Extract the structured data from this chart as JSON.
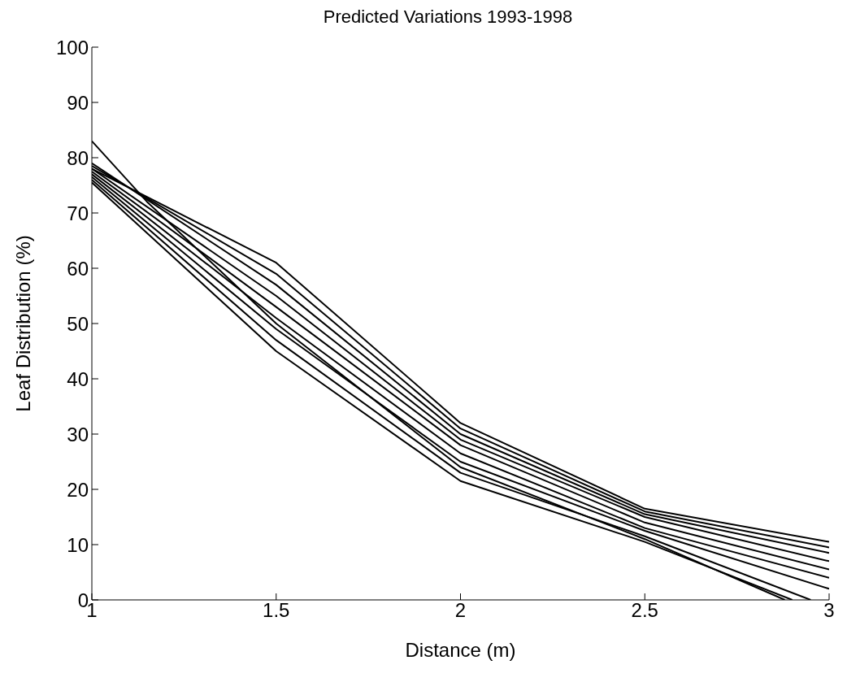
{
  "chart_data": {
    "type": "line",
    "title": "Predicted Variations 1993-1998",
    "xlabel": "Distance (m)",
    "ylabel": "Leaf Distribution (%)",
    "x": [
      1,
      1.5,
      2,
      2.5,
      3
    ],
    "series": [
      {
        "color": "#000000",
        "values": [
          78,
          61,
          32,
          16.5,
          10.5
        ]
      },
      {
        "color": "#000000",
        "values": [
          78.5,
          59,
          31,
          16,
          9.5
        ]
      },
      {
        "color": "#000000",
        "values": [
          79,
          57,
          30,
          15.5,
          8.5
        ]
      },
      {
        "color": "#000000",
        "values": [
          78,
          55,
          29,
          15,
          7
        ]
      },
      {
        "color": "#000000",
        "values": [
          77.5,
          53,
          28,
          14,
          5.5
        ]
      },
      {
        "color": "#000000",
        "values": [
          77,
          51,
          26.5,
          13,
          4
        ]
      },
      {
        "color": "#000000",
        "values": [
          76.5,
          49,
          25,
          12.5,
          2
        ]
      },
      {
        "color": "#000000",
        "x": [
          1,
          1.5,
          2,
          2.5,
          2.95
        ],
        "values": [
          76,
          47,
          23,
          11.5,
          0
        ]
      },
      {
        "color": "#000000",
        "x": [
          1,
          1.5,
          2,
          2.5,
          2.9
        ],
        "values": [
          75.5,
          45,
          21.5,
          10.5,
          0
        ]
      },
      {
        "color": "#000000",
        "x": [
          1,
          1.15,
          1.5,
          2,
          2.5,
          2.88
        ],
        "values": [
          83,
          72,
          50,
          24,
          11,
          0
        ]
      }
    ],
    "xlim": [
      1,
      3
    ],
    "xticks": [
      1,
      1.5,
      2,
      2.5,
      3
    ],
    "ylim": [
      0,
      100
    ],
    "yticks": [
      0,
      10,
      20,
      30,
      40,
      50,
      60,
      70,
      80,
      90,
      100
    ],
    "grid": false,
    "legend": false,
    "marker": "none",
    "line_style": "solid"
  }
}
